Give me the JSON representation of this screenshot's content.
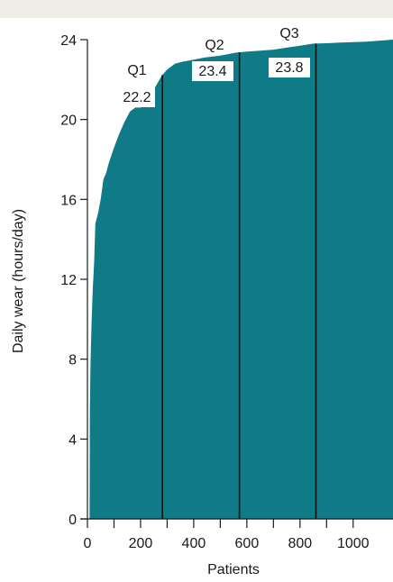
{
  "chart_data": {
    "type": "area",
    "xlabel": "Patients",
    "ylabel": "Daily wear (hours/day)",
    "xlim": [
      0,
      1150
    ],
    "ylim": [
      0,
      24
    ],
    "x_ticks": [
      0,
      200,
      400,
      600,
      800,
      1000
    ],
    "y_ticks": [
      0,
      4,
      8,
      12,
      16,
      20,
      24
    ],
    "minor_x_ticks": [
      100,
      300,
      500,
      700,
      900
    ],
    "grid": false,
    "colors": {
      "fill": "#0e7b87",
      "band": "#efeee6",
      "axis": "#1a1a1a"
    },
    "series": [
      {
        "x": [
          8,
          9,
          12,
          16,
          20,
          25,
          30,
          40,
          50,
          60,
          70,
          80,
          90,
          100,
          120,
          140,
          160,
          180,
          200,
          220,
          250,
          280,
          300,
          330,
          360,
          400,
          440,
          500,
          560,
          600,
          650,
          700,
          750,
          800,
          850,
          900,
          950,
          1000,
          1050,
          1100,
          1150
        ],
        "y": [
          0,
          5.5,
          8,
          10,
          11.5,
          12.8,
          14.8,
          15.3,
          16,
          17,
          17.3,
          17.8,
          18.2,
          18.6,
          19.3,
          19.9,
          20.4,
          20.6,
          20.6,
          20.8,
          21.5,
          22.2,
          22.5,
          22.8,
          22.9,
          23.0,
          23.1,
          23.2,
          23.35,
          23.4,
          23.45,
          23.5,
          23.6,
          23.7,
          23.8,
          23.82,
          23.85,
          23.88,
          23.9,
          23.95,
          24.0
        ]
      }
    ],
    "quartiles": [
      {
        "label": "Q1",
        "value": "22.2",
        "x": 282
      },
      {
        "label": "Q2",
        "value": "23.4",
        "x": 572
      },
      {
        "label": "Q3",
        "value": "23.8",
        "x": 860
      }
    ]
  }
}
